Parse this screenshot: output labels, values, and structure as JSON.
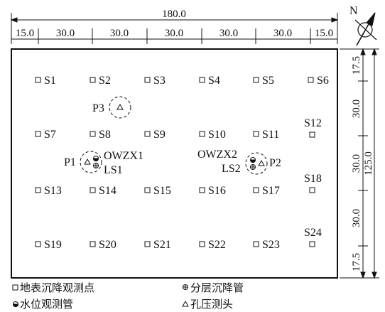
{
  "dimensions": {
    "total_width": "180.0",
    "segments_top": [
      "15.0",
      "30.0",
      "30.0",
      "30.0",
      "30.0",
      "30.0",
      "15.0"
    ],
    "total_height": "125.0",
    "segments_right": [
      "17.5",
      "30.0",
      "30.0",
      "30.0",
      "17.5"
    ]
  },
  "north_label": "N",
  "points": {
    "row1": [
      "S1",
      "S2",
      "S3",
      "S4",
      "S5",
      "S6"
    ],
    "row2": [
      "S7",
      "S8",
      "S9",
      "S10",
      "S11",
      "S12"
    ],
    "row3": [
      "S13",
      "S14",
      "S15",
      "S16",
      "S17",
      "S18"
    ],
    "row4": [
      "S19",
      "S20",
      "S21",
      "S22",
      "S23",
      "S24"
    ]
  },
  "wells": {
    "p3": "P3",
    "p1": "P1",
    "owzx1": "OWZX1",
    "ls1": "LS1",
    "owzx2": "OWZX2",
    "ls2": "LS2",
    "p2": "P2"
  },
  "legend": {
    "surface_point": "地表沉降观测点",
    "layered_pipe": "分层沉降管",
    "water_pipe": "水位观测管",
    "piezometer": "孔压测头"
  }
}
